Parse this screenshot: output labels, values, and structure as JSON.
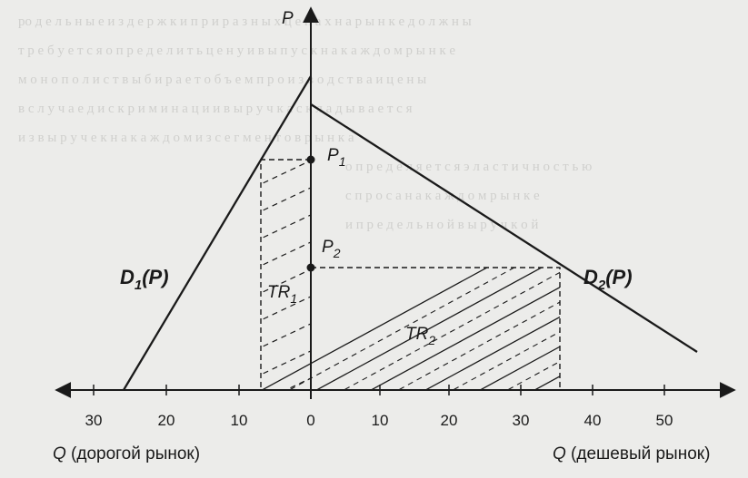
{
  "axis": {
    "price_label": "P",
    "left_caption_var": "Q",
    "left_caption_text": " (дорогой рынок)",
    "right_caption_var": "Q",
    "right_caption_text": " (дешевый рынок)"
  },
  "ticks_left": [
    "30",
    "20",
    "10"
  ],
  "ticks_right": [
    "0",
    "10",
    "20",
    "30",
    "40",
    "50"
  ],
  "curves": {
    "d1_main": "D",
    "d1_sub": "1",
    "d1_arg": "(P)",
    "d2_main": "D",
    "d2_sub": "2",
    "d2_arg": "(P)"
  },
  "prices": {
    "p1_main": "P",
    "p1_sub": "1",
    "p2_main": "P",
    "p2_sub": "2"
  },
  "areas": {
    "tr1_main": "TR",
    "tr1_sub": "1",
    "tr2_main": "TR",
    "tr2_sub": "2"
  }
}
